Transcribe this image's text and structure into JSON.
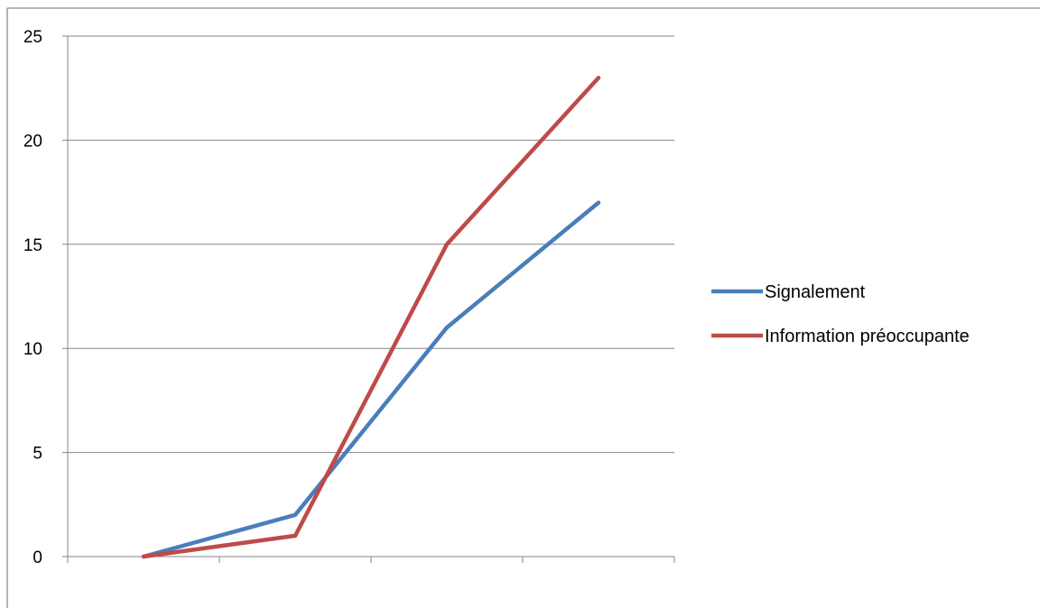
{
  "chart_data": {
    "type": "line",
    "title": "",
    "xlabel": "",
    "ylabel": "",
    "x": [
      1,
      2,
      3,
      4
    ],
    "ylim": [
      0,
      25
    ],
    "yticks": [
      0,
      5,
      10,
      15,
      20,
      25
    ],
    "grid": true,
    "legend_position": "right",
    "series": [
      {
        "name": "Signalement",
        "color": "#4a7ebb",
        "values": [
          0,
          2,
          11,
          17
        ]
      },
      {
        "name": "Information préoccupante",
        "color": "#be4b48",
        "values": [
          0,
          1,
          15,
          23
        ]
      }
    ]
  }
}
